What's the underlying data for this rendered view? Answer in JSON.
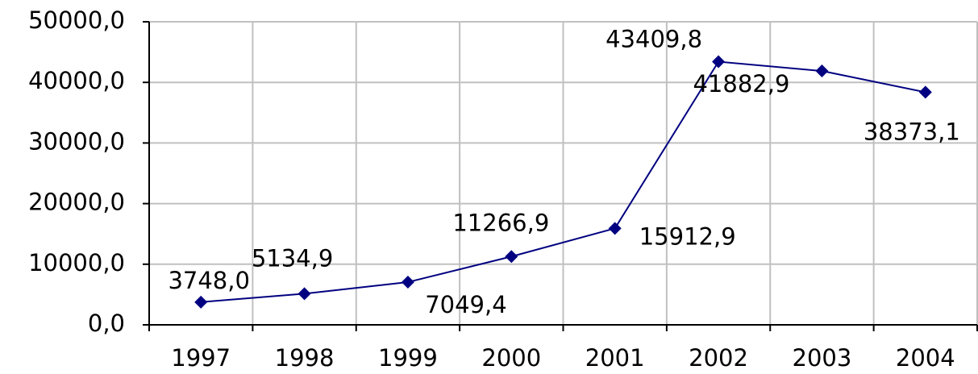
{
  "chart_data": {
    "type": "line",
    "categories": [
      "1997",
      "1998",
      "1999",
      "2000",
      "2001",
      "2002",
      "2003",
      "2004"
    ],
    "series": [
      {
        "color": "#000080",
        "values": [
          3748.0,
          5134.9,
          7049.4,
          11266.9,
          15912.9,
          43409.8,
          41882.9,
          38373.1
        ],
        "value_labels": [
          "3748,0",
          "5134,9",
          "7049,4",
          "11266,9",
          "15912,9",
          "43409,8",
          "41882,9",
          "38373,1"
        ]
      }
    ],
    "ylim": [
      0,
      50000
    ],
    "yticks": [
      {
        "value": 0,
        "label": "0,0"
      },
      {
        "value": 10000,
        "label": "10000,0"
      },
      {
        "value": 20000,
        "label": "20000,0"
      },
      {
        "value": 30000,
        "label": "30000,0"
      },
      {
        "value": 40000,
        "label": "40000,0"
      },
      {
        "value": 50000,
        "label": "50000,0"
      }
    ],
    "grid": true
  }
}
